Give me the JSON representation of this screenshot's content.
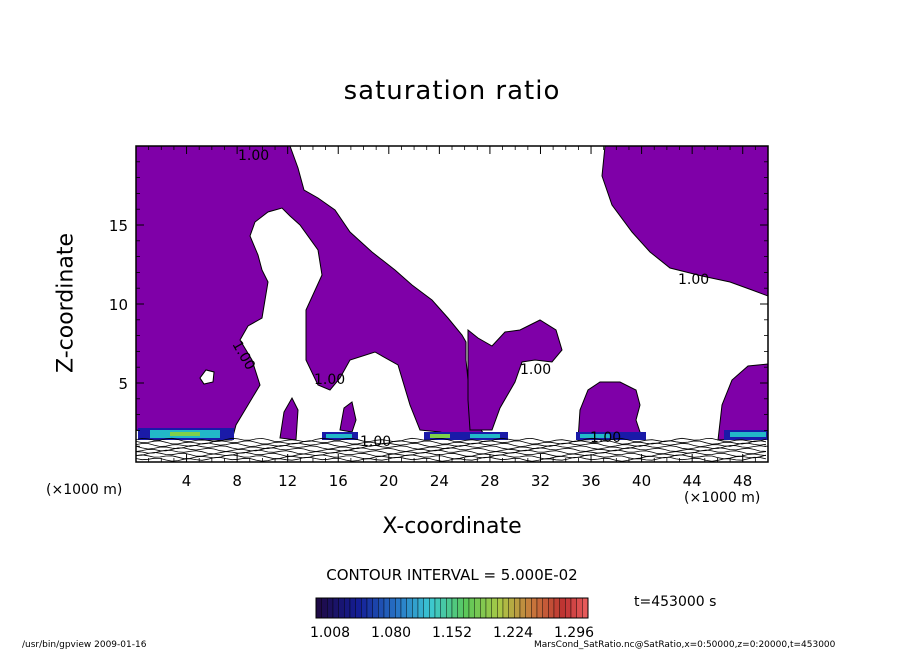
{
  "chart_data": {
    "type": "contour",
    "title": "saturation ratio",
    "xlabel": "X-coordinate",
    "ylabel": "Z-coordinate",
    "x_unit": "(×1000 m)",
    "xlim": [
      0,
      50
    ],
    "ylim": [
      0,
      20
    ],
    "x_ticks": [
      4,
      8,
      12,
      16,
      20,
      24,
      28,
      32,
      36,
      40,
      44,
      48
    ],
    "y_ticks": [
      5,
      10,
      15
    ],
    "contour_interval_label": "CONTOUR INTERVAL = 5.000E-02",
    "contour_labels": [
      "1.00",
      "1.00",
      "1.00",
      "1.00",
      "1.00",
      "1.00",
      "1.00"
    ],
    "fill_color": "#7f00a8",
    "colorbar": {
      "tick_labels": [
        "1.008",
        "1.080",
        "1.152",
        "1.224",
        "1.296"
      ],
      "min": 1.008,
      "max": 1.296
    },
    "time_label": "t=453000 s"
  },
  "footer": {
    "left": "/usr/bin/gpview   2009-01-16",
    "right": "MarsCond_SatRatio.nc@SatRatio,x=0:50000,z=0:20000,t=453000"
  }
}
